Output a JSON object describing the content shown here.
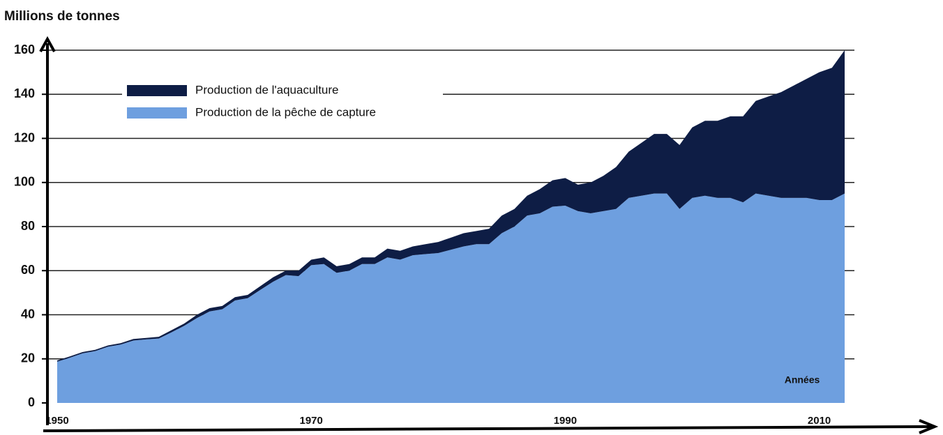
{
  "chart_data": {
    "type": "stacked_area",
    "y_axis_label": "Millions de tonnes",
    "x_axis_label": "Années",
    "x": [
      1950,
      1951,
      1952,
      1953,
      1954,
      1955,
      1956,
      1957,
      1958,
      1959,
      1960,
      1961,
      1962,
      1963,
      1964,
      1965,
      1966,
      1967,
      1968,
      1969,
      1970,
      1971,
      1972,
      1973,
      1974,
      1975,
      1976,
      1977,
      1978,
      1979,
      1980,
      1981,
      1982,
      1983,
      1984,
      1985,
      1986,
      1987,
      1988,
      1989,
      1990,
      1991,
      1992,
      1993,
      1994,
      1995,
      1996,
      1997,
      1998,
      1999,
      2000,
      2001,
      2002,
      2003,
      2004,
      2005,
      2006,
      2007,
      2008,
      2009,
      2010,
      2011,
      2012
    ],
    "series": [
      {
        "name": "Production de l'aquaculture",
        "color": "#0e1d45",
        "values": [
          0.6,
          0.6,
          0.6,
          0.6,
          0.6,
          0.6,
          0.7,
          0.7,
          0.8,
          1,
          1,
          1.5,
          1.5,
          1.5,
          1.5,
          1.5,
          1.7,
          2,
          2,
          2.5,
          2.5,
          3,
          3,
          3,
          3,
          3,
          4,
          4,
          4,
          4.5,
          5,
          5.5,
          6,
          6,
          7,
          8,
          8,
          9,
          11,
          12,
          12.5,
          12,
          14,
          16,
          19,
          21,
          24,
          27,
          27,
          29,
          32,
          34,
          35,
          37,
          39,
          42,
          45,
          48,
          51,
          54,
          58,
          60,
          65
        ]
      },
      {
        "name": "Production de la pêche de capture",
        "color": "#6e9fdf",
        "values": [
          18.7,
          20.5,
          22.5,
          23.5,
          25.5,
          26.5,
          28.3,
          28.8,
          29.2,
          32,
          35,
          38.5,
          41.5,
          42.5,
          46.5,
          47.5,
          51.3,
          55,
          58,
          57.5,
          62.5,
          63,
          59,
          60,
          63,
          63,
          66,
          65,
          67,
          67.5,
          68,
          69.5,
          71,
          72,
          72,
          77,
          80,
          85,
          86,
          89,
          89.5,
          87,
          86,
          87,
          88,
          93,
          94,
          95,
          95,
          88,
          93,
          94,
          93,
          93,
          91,
          95,
          94,
          93,
          93,
          93,
          92,
          92,
          95
        ]
      }
    ],
    "stack_order": [
      "Production de la pêche de capture",
      "Production de l'aquaculture"
    ],
    "xlim": [
      1950,
      2012
    ],
    "xticks": [
      1950,
      1970,
      1990,
      2010
    ],
    "ylim": [
      0,
      160
    ],
    "yticks": [
      0,
      20,
      40,
      60,
      80,
      100,
      120,
      140,
      160
    ],
    "grid": true,
    "legend": "upper left"
  }
}
